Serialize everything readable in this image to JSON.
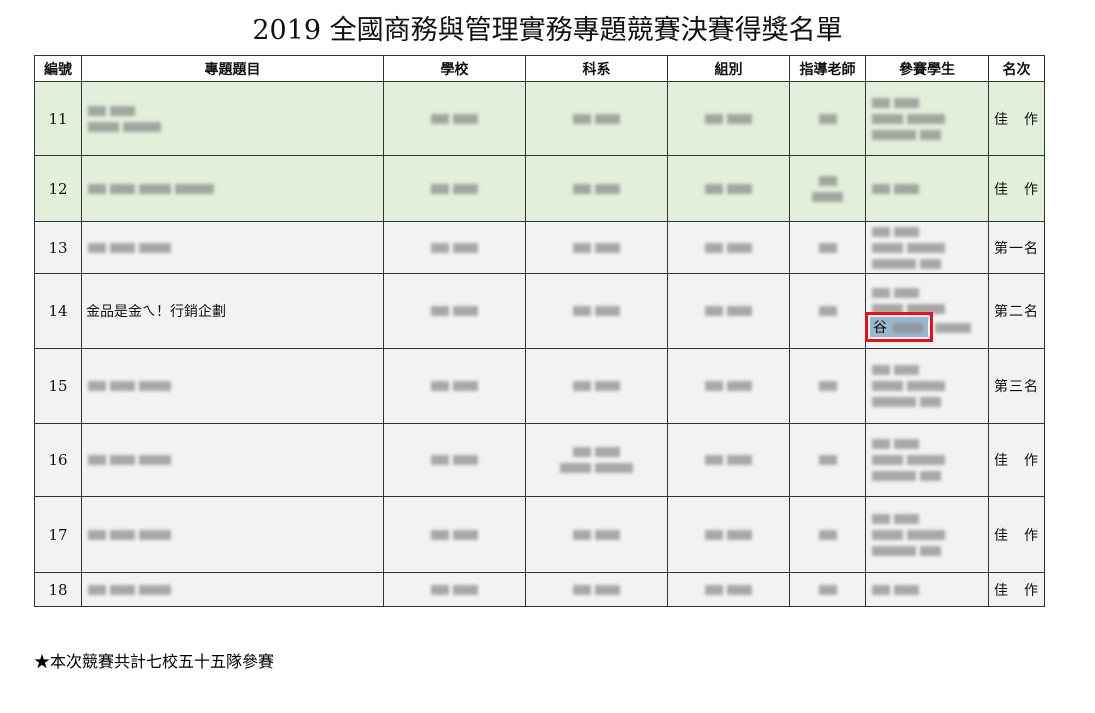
{
  "title": "2019 全國商務與管理實務專題競賽決賽得獎名單",
  "headers": [
    "編號",
    "專題題目",
    "學校",
    "科系",
    "組別",
    "指導老師",
    "參賽學生",
    "名次"
  ],
  "colors": {
    "green_rows": "#e2efda",
    "gray_rows": "#f2f2f2",
    "highlight_box": "#e0141b"
  },
  "rows": [
    {
      "no": "11",
      "topic": "",
      "rank": "佳　作"
    },
    {
      "no": "12",
      "topic": "",
      "rank": "佳　作"
    },
    {
      "no": "13",
      "topic": "",
      "rank": "第一名"
    },
    {
      "no": "14",
      "topic": "金品是金ㄟ！行銷企劃",
      "rank": "第二名",
      "student_visible": "谷"
    },
    {
      "no": "15",
      "topic": "",
      "rank": "第三名"
    },
    {
      "no": "16",
      "topic": "",
      "rank": "佳　作"
    },
    {
      "no": "17",
      "topic": "",
      "rank": "佳　作"
    },
    {
      "no": "18",
      "topic": "",
      "rank": "佳　作"
    }
  ],
  "note": "★本次競賽共計七校五十五隊參賽"
}
